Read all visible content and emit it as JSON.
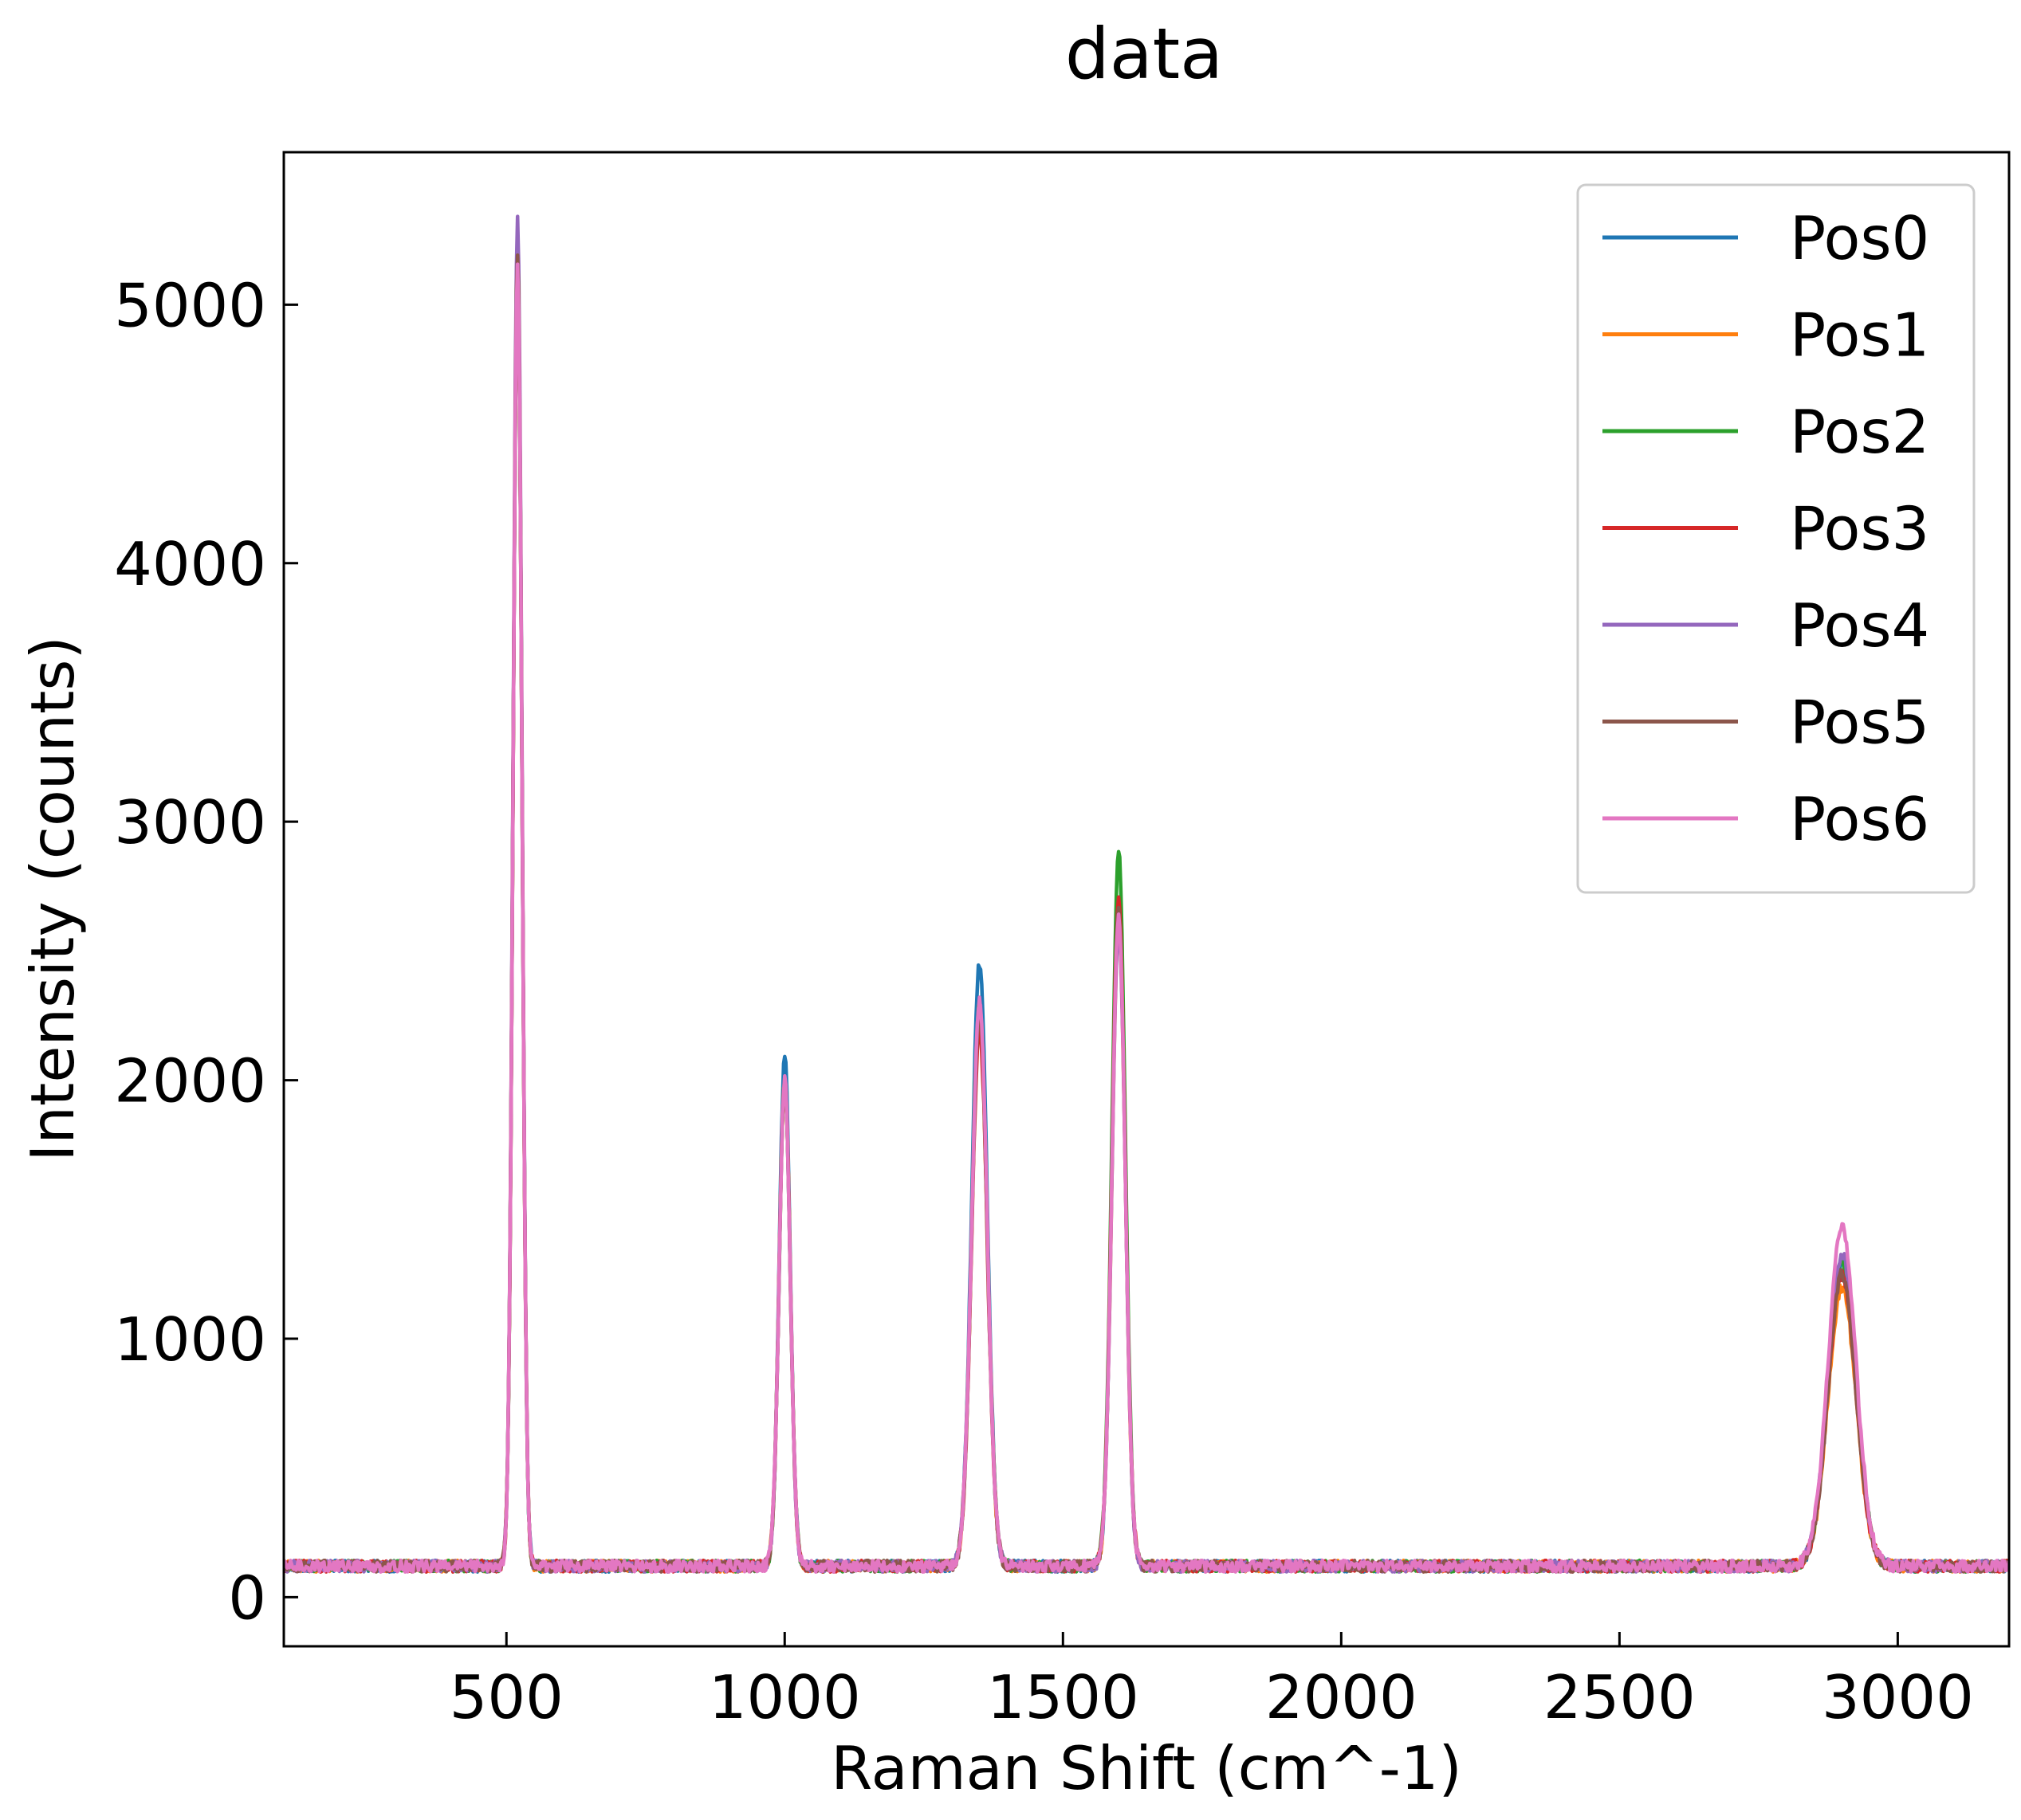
{
  "chart_data": {
    "type": "line",
    "title": "data",
    "xlabel": "Raman Shift (cm^-1)",
    "ylabel": "Intensity (counts)",
    "xlim": [
      100,
      3200
    ],
    "ylim": [
      -190,
      5590
    ],
    "xticks": [
      500,
      1000,
      1500,
      2000,
      2500,
      3000
    ],
    "yticks": [
      0,
      1000,
      2000,
      3000,
      4000,
      5000
    ],
    "xtick_labels": [
      "500",
      "1000",
      "1500",
      "2000",
      "2500",
      "3000"
    ],
    "ytick_labels": [
      "0",
      "1000",
      "2000",
      "3000",
      "4000",
      "5000"
    ],
    "grid": false,
    "legend_position": "top-right",
    "baseline": 120,
    "peak_centers": [
      520,
      1000,
      1350,
      1600,
      2900
    ],
    "peak_widths": [
      8,
      10,
      14,
      12,
      25
    ],
    "series": [
      {
        "name": "Pos0",
        "color": "#1f77b4",
        "peak_heights": [
          5150,
          2090,
          2450,
          2650,
          1300
        ]
      },
      {
        "name": "Pos1",
        "color": "#ff7f0e",
        "peak_heights": [
          5150,
          2000,
          2250,
          2600,
          1200
        ]
      },
      {
        "name": "Pos2",
        "color": "#2ca02c",
        "peak_heights": [
          5150,
          2000,
          2300,
          2880,
          1300
        ]
      },
      {
        "name": "Pos3",
        "color": "#d62728",
        "peak_heights": [
          5150,
          2000,
          2200,
          2700,
          1250
        ]
      },
      {
        "name": "Pos4",
        "color": "#9467bd",
        "peak_heights": [
          5320,
          2000,
          2300,
          2600,
          1330
        ]
      },
      {
        "name": "Pos5",
        "color": "#8c564b",
        "peak_heights": [
          5200,
          2000,
          2250,
          2650,
          1250
        ]
      },
      {
        "name": "Pos6",
        "color": "#e377c2",
        "peak_heights": [
          5150,
          2000,
          2300,
          2620,
          1430
        ]
      }
    ]
  }
}
